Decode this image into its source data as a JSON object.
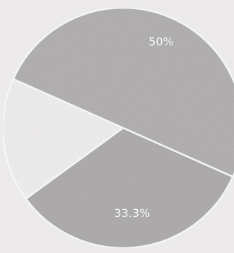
{
  "chart_data": {
    "type": "pie",
    "slices": [
      {
        "label": "50%",
        "value": 50,
        "color": "#b7b4b4"
      },
      {
        "label": "33.3%",
        "value": 33.3,
        "color": "#b3b0b0"
      },
      {
        "label": "",
        "value": 16.7,
        "color": "#f4f2f2"
      }
    ],
    "title": "",
    "legend": "none",
    "slice_separator_color": "#ffffff"
  }
}
